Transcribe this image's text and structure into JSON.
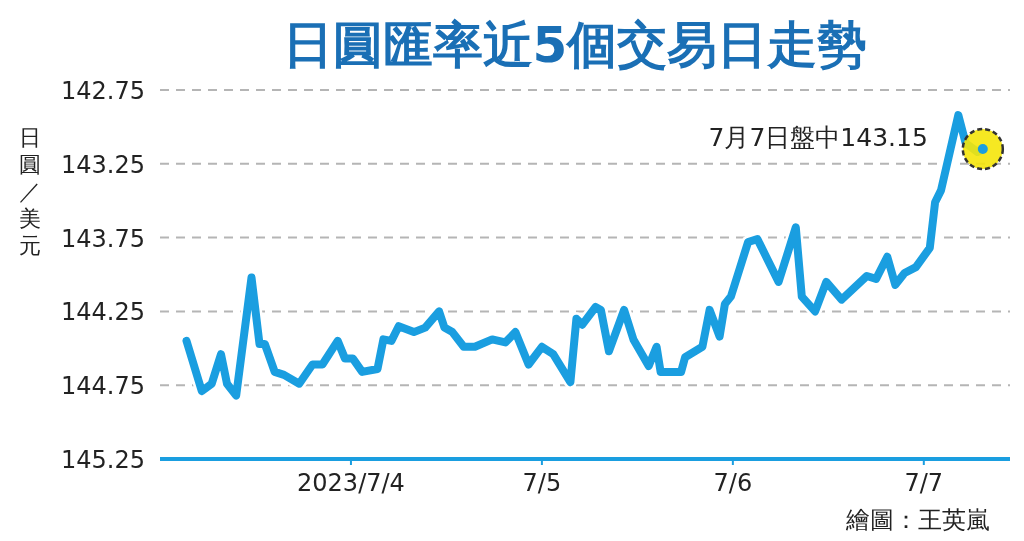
{
  "chart_data": {
    "type": "line",
    "title": "日圓匯率近5個交易日走勢",
    "ylabel": "日圓／美元",
    "x": [
      "2023-07-03T03:20",
      "2023-07-03T05:15",
      "2023-07-03T06:30",
      "2023-07-03T07:40",
      "2023-07-03T08:25",
      "2023-07-03T09:35",
      "2023-07-03T11:30",
      "2023-07-03T12:30",
      "2023-07-03T13:10",
      "2023-07-03T14:25",
      "2023-07-03T15:35",
      "2023-07-03T17:30",
      "2023-07-03T19:10",
      "2023-07-03T20:25",
      "2023-07-03T22:20",
      "2023-07-03T23:15",
      "2023-07-04T00:15",
      "2023-07-04T01:25",
      "2023-07-04T03:20",
      "2023-07-04T04:05",
      "2023-07-04T05:05",
      "2023-07-04T06:00",
      "2023-07-04T07:55",
      "2023-07-04T09:20",
      "2023-07-04T11:05",
      "2023-07-04T11:45",
      "2023-07-04T12:45",
      "2023-07-04T14:10",
      "2023-07-04T15:35",
      "2023-07-04T17:45",
      "2023-07-04T19:25",
      "2023-07-04T20:40",
      "2023-07-04T22:20",
      "2023-07-05T00:00",
      "2023-07-05T01:25",
      "2023-07-05T03:35",
      "2023-07-05T04:20",
      "2023-07-05T05:05",
      "2023-07-05T06:45",
      "2023-07-05T07:25",
      "2023-07-05T08:25",
      "2023-07-05T10:20",
      "2023-07-05T11:30",
      "2023-07-05T13:25",
      "2023-07-05T14:25",
      "2023-07-05T14:55",
      "2023-07-05T17:30",
      "2023-07-05T18:00",
      "2023-07-05T20:10",
      "2023-07-05T21:05",
      "2023-07-05T22:20",
      "2023-07-05T23:00",
      "2023-07-05T23:45",
      "2023-07-06T01:55",
      "2023-07-06T03:05",
      "2023-07-06T05:45",
      "2023-07-06T07:55",
      "2023-07-06T08:40",
      "2023-07-06T10:20",
      "2023-07-06T11:45",
      "2023-07-06T13:40",
      "2023-07-06T16:50",
      "2023-07-06T18:00",
      "2023-07-06T19:25",
      "2023-07-06T20:25",
      "2023-07-06T21:35",
      "2023-07-06T23:00",
      "2023-07-07T00:45",
      "2023-07-07T01:25",
      "2023-07-07T02:10",
      "2023-07-07T04:20",
      "2023-07-07T05:15",
      "2023-07-07T06:45",
      "2023-07-07T07:25"
    ],
    "series": [
      {
        "color": "#1a9ee0",
        "values": [
          144.45,
          144.79,
          144.74,
          144.54,
          144.74,
          144.82,
          144.02,
          144.47,
          144.47,
          144.66,
          144.68,
          144.74,
          144.61,
          144.61,
          144.45,
          144.57,
          144.57,
          144.66,
          144.64,
          144.44,
          144.45,
          144.35,
          144.39,
          144.36,
          144.25,
          144.36,
          144.39,
          144.49,
          144.49,
          144.44,
          144.46,
          144.39,
          144.61,
          144.49,
          144.54,
          144.73,
          144.3,
          144.34,
          144.22,
          144.24,
          144.52,
          144.24,
          144.44,
          144.62,
          144.49,
          144.66,
          144.66,
          144.56,
          144.49,
          144.24,
          144.42,
          144.2,
          144.15,
          143.78,
          143.76,
          144.05,
          143.68,
          144.15,
          144.25,
          144.05,
          144.17,
          144.01,
          144.03,
          143.88,
          144.07,
          143.99,
          143.95,
          143.82,
          143.51,
          143.43,
          142.92,
          143.11,
          143.17,
          143.15
        ]
      }
    ],
    "xlim": [
      "2023-07-03",
      "2023-07-07T10:50"
    ],
    "xticks": [
      {
        "value": "2023-07-04",
        "label": "2023/7/4"
      },
      {
        "value": "2023-07-05",
        "label": "7/5"
      },
      {
        "value": "2023-07-06",
        "label": "7/6"
      },
      {
        "value": "2023-07-07",
        "label": "7/7"
      }
    ],
    "ylim": [
      145.25,
      142.75
    ],
    "yticks": [
      142.75,
      143.25,
      143.75,
      144.25,
      144.75,
      145.25
    ],
    "grid": "y",
    "annotations": [
      {
        "text": "7月7日盤中143.15",
        "x": "2023-07-07T07:25",
        "y": 143.15
      },
      "繪圖：王英嵐"
    ]
  }
}
